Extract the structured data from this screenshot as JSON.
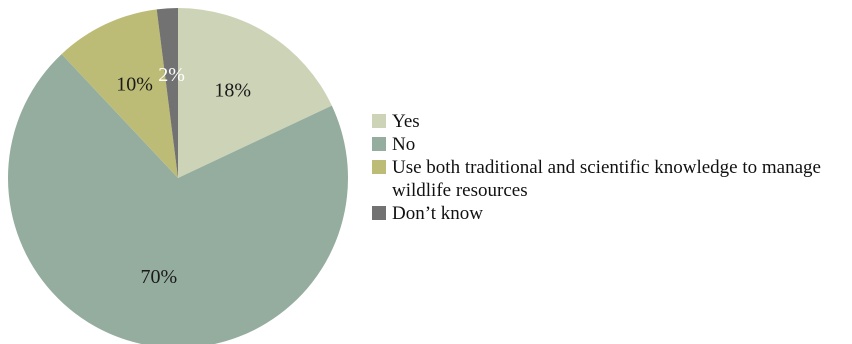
{
  "chart_data": {
    "type": "pie",
    "title": "",
    "categories": [
      "Yes",
      "No",
      "Use both traditional and scientific knowledge to manage wildlife resources",
      "Don’t know"
    ],
    "values": [
      18,
      70,
      10,
      2
    ],
    "labels": [
      "18%",
      "70%",
      "10%",
      "2%"
    ],
    "colors": [
      "#cdd3b7",
      "#94ad9f",
      "#bcbc77",
      "#727272"
    ],
    "label_colors": [
      "#1a1a1a",
      "#1a1a1a",
      "#1a1a1a",
      "#ffffff"
    ],
    "legend": "right"
  }
}
